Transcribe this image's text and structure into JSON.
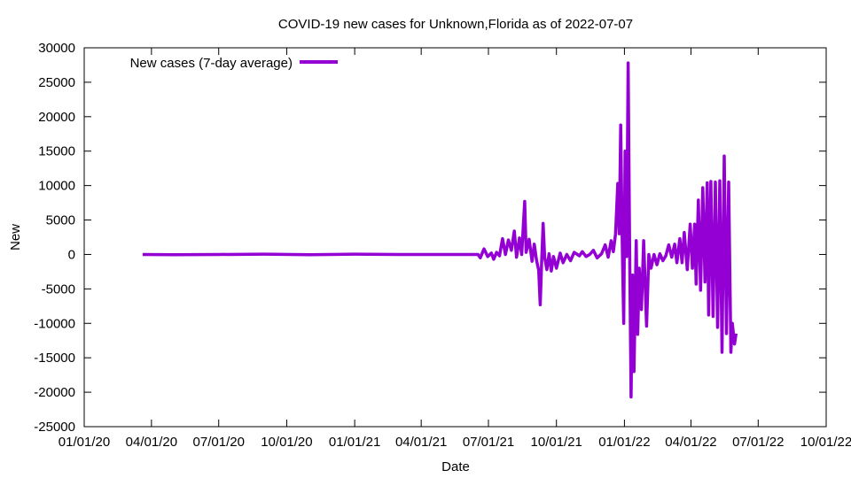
{
  "chart_data": {
    "type": "line",
    "title": "COVID-19 new cases for Unknown,Florida as of 2022-07-07",
    "xlabel": "Date",
    "ylabel": "New",
    "xlim": [
      "2020-01-01",
      "2022-10-01"
    ],
    "ylim": [
      -25000,
      30000
    ],
    "x_ticks": [
      "01/01/20",
      "04/01/20",
      "07/01/20",
      "10/01/20",
      "01/01/21",
      "04/01/21",
      "07/01/21",
      "10/01/21",
      "01/01/22",
      "04/01/22",
      "07/01/22",
      "10/01/22"
    ],
    "y_ticks": [
      -25000,
      -20000,
      -15000,
      -10000,
      -5000,
      0,
      5000,
      10000,
      15000,
      20000,
      25000,
      30000
    ],
    "grid": false,
    "legend": "top-left",
    "series": [
      {
        "name": "New cases (7-day average)",
        "color": "#9400d3",
        "points": [
          [
            "2020-03-20",
            0
          ],
          [
            "2020-05-01",
            -50
          ],
          [
            "2020-07-01",
            0
          ],
          [
            "2020-09-01",
            50
          ],
          [
            "2020-11-01",
            -50
          ],
          [
            "2021-01-01",
            50
          ],
          [
            "2021-03-01",
            0
          ],
          [
            "2021-05-01",
            0
          ],
          [
            "2021-06-17",
            0
          ],
          [
            "2021-06-20",
            -500
          ],
          [
            "2021-06-25",
            800
          ],
          [
            "2021-06-30",
            -300
          ],
          [
            "2021-07-05",
            200
          ],
          [
            "2021-07-08",
            -700
          ],
          [
            "2021-07-12",
            300
          ],
          [
            "2021-07-16",
            -200
          ],
          [
            "2021-07-20",
            2300
          ],
          [
            "2021-07-24",
            0
          ],
          [
            "2021-07-28",
            2100
          ],
          [
            "2021-08-01",
            600
          ],
          [
            "2021-08-05",
            3400
          ],
          [
            "2021-08-08",
            -400
          ],
          [
            "2021-08-12",
            2400
          ],
          [
            "2021-08-15",
            0
          ],
          [
            "2021-08-19",
            7700
          ],
          [
            "2021-08-21",
            300
          ],
          [
            "2021-08-25",
            2200
          ],
          [
            "2021-08-29",
            -1000
          ],
          [
            "2021-09-01",
            1500
          ],
          [
            "2021-09-04",
            -800
          ],
          [
            "2021-09-07",
            -2300
          ],
          [
            "2021-09-09",
            -7300
          ],
          [
            "2021-09-11",
            -1200
          ],
          [
            "2021-09-13",
            4500
          ],
          [
            "2021-09-15",
            -400
          ],
          [
            "2021-09-18",
            -2200
          ],
          [
            "2021-09-21",
            100
          ],
          [
            "2021-09-24",
            -2400
          ],
          [
            "2021-09-27",
            -300
          ],
          [
            "2021-10-01",
            -2000
          ],
          [
            "2021-10-06",
            200
          ],
          [
            "2021-10-10",
            -1200
          ],
          [
            "2021-10-15",
            0
          ],
          [
            "2021-10-20",
            -900
          ],
          [
            "2021-10-25",
            300
          ],
          [
            "2021-11-01",
            -200
          ],
          [
            "2021-11-05",
            400
          ],
          [
            "2021-11-10",
            -300
          ],
          [
            "2021-11-15",
            0
          ],
          [
            "2021-11-20",
            600
          ],
          [
            "2021-11-25",
            -500
          ],
          [
            "2021-12-01",
            100
          ],
          [
            "2021-12-06",
            1400
          ],
          [
            "2021-12-10",
            -400
          ],
          [
            "2021-12-14",
            2000
          ],
          [
            "2021-12-17",
            400
          ],
          [
            "2021-12-20",
            3000
          ],
          [
            "2021-12-23",
            10300
          ],
          [
            "2021-12-25",
            3000
          ],
          [
            "2021-12-27",
            18800
          ],
          [
            "2021-12-29",
            2000
          ],
          [
            "2021-12-31",
            -10000
          ],
          [
            "2022-01-02",
            15000
          ],
          [
            "2022-01-04",
            -300
          ],
          [
            "2022-01-06",
            27800
          ],
          [
            "2022-01-08",
            2000
          ],
          [
            "2022-01-10",
            -20700
          ],
          [
            "2022-01-12",
            -3000
          ],
          [
            "2022-01-14",
            -17000
          ],
          [
            "2022-01-17",
            2000
          ],
          [
            "2022-01-19",
            -11600
          ],
          [
            "2022-01-21",
            -2000
          ],
          [
            "2022-01-24",
            -8000
          ],
          [
            "2022-01-27",
            2000
          ],
          [
            "2022-01-31",
            -10400
          ],
          [
            "2022-02-03",
            0
          ],
          [
            "2022-02-06",
            -2000
          ],
          [
            "2022-02-10",
            0
          ],
          [
            "2022-02-14",
            -1500
          ],
          [
            "2022-02-18",
            100
          ],
          [
            "2022-02-22",
            -900
          ],
          [
            "2022-02-26",
            -200
          ],
          [
            "2022-03-02",
            1400
          ],
          [
            "2022-03-06",
            -400
          ],
          [
            "2022-03-10",
            1500
          ],
          [
            "2022-03-13",
            -1200
          ],
          [
            "2022-03-17",
            2300
          ],
          [
            "2022-03-20",
            -1200
          ],
          [
            "2022-03-23",
            3200
          ],
          [
            "2022-03-27",
            -2200
          ],
          [
            "2022-03-31",
            4400
          ],
          [
            "2022-04-03",
            -2000
          ],
          [
            "2022-04-06",
            4400
          ],
          [
            "2022-04-08",
            -4300
          ],
          [
            "2022-04-11",
            7900
          ],
          [
            "2022-04-14",
            -5200
          ],
          [
            "2022-04-17",
            9700
          ],
          [
            "2022-04-20",
            -4000
          ],
          [
            "2022-04-23",
            10400
          ],
          [
            "2022-04-25",
            -8800
          ],
          [
            "2022-04-28",
            10600
          ],
          [
            "2022-05-01",
            -9000
          ],
          [
            "2022-05-04",
            10500
          ],
          [
            "2022-05-07",
            -10600
          ],
          [
            "2022-05-10",
            10700
          ],
          [
            "2022-05-13",
            -14200
          ],
          [
            "2022-05-16",
            14300
          ],
          [
            "2022-05-19",
            -11500
          ],
          [
            "2022-05-22",
            10500
          ],
          [
            "2022-05-25",
            -14200
          ],
          [
            "2022-05-27",
            -10000
          ],
          [
            "2022-05-30",
            -13000
          ],
          [
            "2022-06-01",
            -11500
          ]
        ]
      }
    ]
  }
}
